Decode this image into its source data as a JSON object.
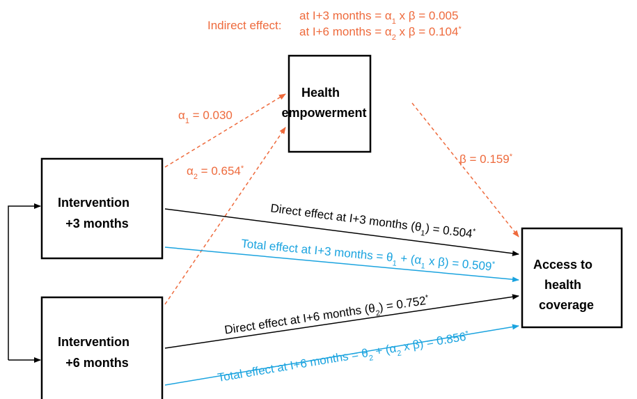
{
  "nodes": [
    {
      "label": [
        "Health",
        "empowerment"
      ]
    },
    {
      "label": [
        "Intervention",
        "+3 months"
      ]
    },
    {
      "label": [
        "Intervention",
        "+6 months"
      ]
    },
    {
      "label": [
        "Access to",
        "health",
        "coverage"
      ]
    }
  ],
  "indirect_effect": {
    "label": "Indirect effect:",
    "lines": [
      [
        {
          "text": "at I+3 months = α"
        },
        {
          "sub": "1"
        },
        {
          "text": " x β = 0.005"
        }
      ],
      [
        {
          "text": "at I+6 months = α"
        },
        {
          "sub": "2"
        },
        {
          "text": " x β = 0.104"
        },
        {
          "sup": "*"
        }
      ]
    ]
  },
  "edges": {
    "alpha1": [
      {
        "text": "α"
      },
      {
        "sub": "1"
      },
      {
        "text": " = 0.030"
      }
    ],
    "alpha2": [
      {
        "text": "α"
      },
      {
        "sub": "2"
      },
      {
        "text": " = 0.654"
      },
      {
        "sup": "*"
      }
    ],
    "beta": [
      {
        "text": "β = 0.159"
      },
      {
        "sup": "*"
      }
    ],
    "direct_3": [
      {
        "text": "Direct effect at I+3 months (θ"
      },
      {
        "sub": "1"
      },
      {
        "text": ") = 0.504"
      },
      {
        "sup": "*"
      }
    ],
    "total_3": [
      {
        "text": "Total effect at I+3 months = θ"
      },
      {
        "sub": "1"
      },
      {
        "text": " + (α"
      },
      {
        "sub": "1"
      },
      {
        "text": " x β) = 0.509"
      },
      {
        "sup": "*"
      }
    ],
    "direct_6": [
      {
        "text": "Direct effect at I+6 months (θ"
      },
      {
        "sub": "2"
      },
      {
        "text": ") = 0.752"
      },
      {
        "sup": "*"
      }
    ],
    "total_6": [
      {
        "text": "Total effect at I+6 months = θ"
      },
      {
        "sub": "2"
      },
      {
        "text": " + (α"
      },
      {
        "sub": "2"
      },
      {
        "text": " x β) = 0.856"
      },
      {
        "sup": "*"
      }
    ]
  }
}
